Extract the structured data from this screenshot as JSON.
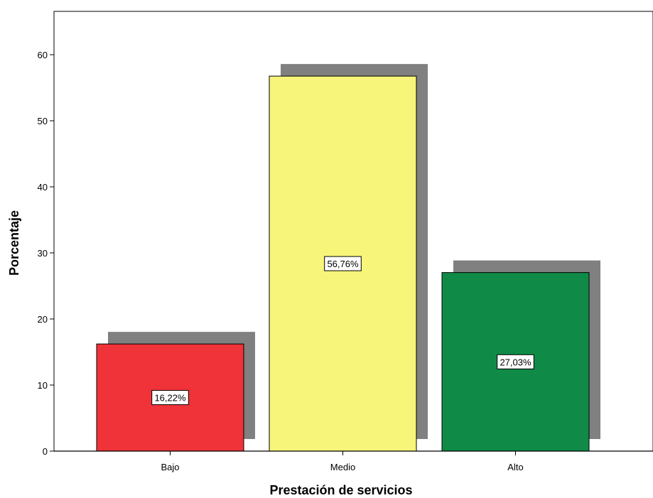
{
  "chart_data": {
    "type": "bar",
    "categories": [
      "Bajo",
      "Medio",
      "Alto"
    ],
    "values": [
      16.22,
      56.76,
      27.03
    ],
    "data_labels": [
      "16,22%",
      "56,76%",
      "27,03%"
    ],
    "bar_colors": [
      "#ef3339",
      "#f7f57a",
      "#108a47"
    ],
    "shadow_color": "#808080",
    "xlabel": "Prestación de servicios",
    "ylabel": "Porcentaje",
    "ylim": [
      0,
      66
    ],
    "yticks": [
      0,
      10,
      20,
      30,
      40,
      50,
      60
    ],
    "grid": false,
    "legend": "none"
  }
}
